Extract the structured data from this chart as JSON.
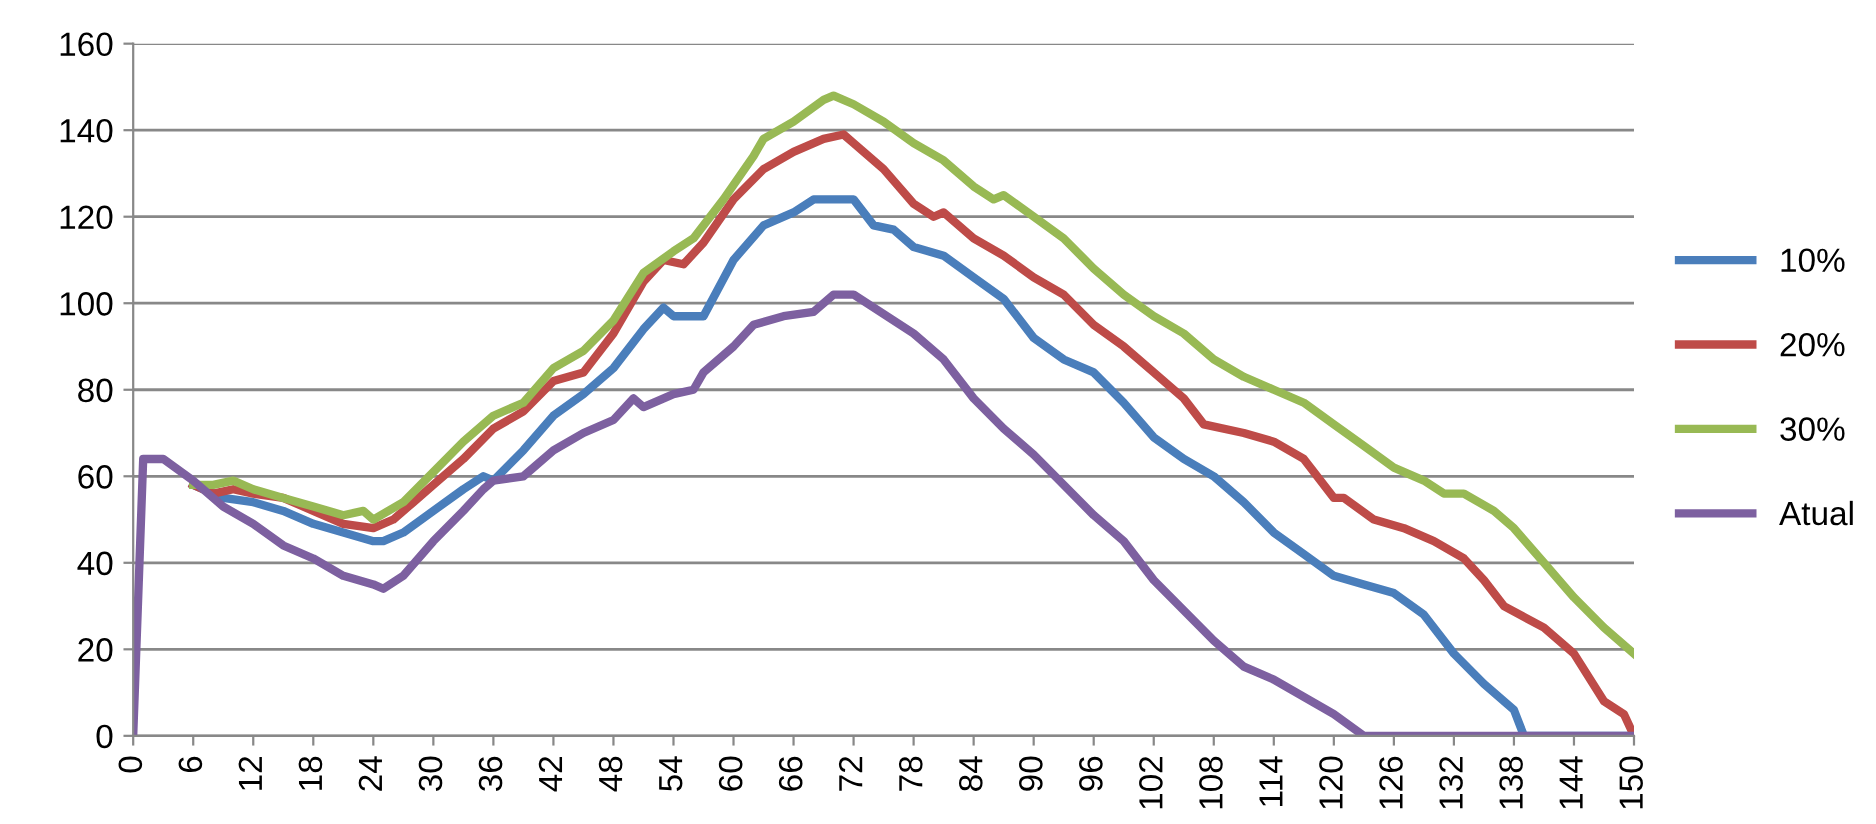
{
  "chart_data": {
    "type": "line",
    "xlim": [
      0,
      150
    ],
    "xticks": [
      0,
      6,
      12,
      18,
      24,
      30,
      36,
      42,
      48,
      54,
      60,
      66,
      72,
      78,
      84,
      90,
      96,
      102,
      108,
      114,
      120,
      126,
      132,
      138,
      144,
      150
    ],
    "ylim": [
      0,
      160
    ],
    "yticks": [
      0,
      20,
      40,
      60,
      80,
      100,
      120,
      140,
      160
    ],
    "grid": "y",
    "legend": "right",
    "marker": "none",
    "line_style": "solid",
    "series": [
      {
        "name": "10%",
        "color": "#4a7ebb",
        "x": [
          6,
          8,
          9,
          12,
          15,
          18,
          21,
          24,
          25,
          27,
          30,
          33,
          35,
          36,
          39,
          42,
          45,
          48,
          51,
          53,
          54,
          57,
          60,
          63,
          66,
          68,
          70,
          72,
          74,
          76,
          78,
          81,
          84,
          87,
          90,
          93,
          96,
          99,
          102,
          105,
          108,
          111,
          114,
          117,
          120,
          123,
          126,
          129,
          132,
          135,
          138,
          139,
          150
        ],
        "values": [
          58,
          56,
          55,
          54,
          52,
          49,
          47,
          45,
          45,
          47,
          52,
          57,
          60,
          59,
          66,
          74,
          79,
          85,
          94,
          99,
          97,
          97,
          110,
          118,
          121,
          124,
          124,
          124,
          118,
          117,
          113,
          111,
          106,
          101,
          92,
          87,
          84,
          77,
          69,
          64,
          60,
          54,
          47,
          42,
          37,
          35,
          33,
          28,
          19,
          12,
          6,
          0,
          0
        ]
      },
      {
        "name": "20%",
        "color": "#be4b48",
        "x": [
          6,
          8,
          10,
          12,
          15,
          18,
          21,
          24,
          26,
          28,
          30,
          33,
          36,
          39,
          42,
          45,
          48,
          51,
          53,
          55,
          57,
          60,
          63,
          66,
          69,
          71,
          72,
          75,
          78,
          80,
          81,
          84,
          87,
          90,
          93,
          96,
          99,
          102,
          105,
          107,
          111,
          114,
          117,
          120,
          121,
          124,
          127,
          130,
          133,
          135,
          137,
          141,
          144,
          147,
          149,
          150
        ],
        "values": [
          58,
          56,
          57,
          56,
          55,
          52,
          49,
          48,
          50,
          54,
          58,
          64,
          71,
          75,
          82,
          84,
          93,
          105,
          110,
          109,
          114,
          124,
          131,
          135,
          138,
          139,
          137,
          131,
          123,
          120,
          121,
          115,
          111,
          106,
          102,
          95,
          90,
          84,
          78,
          72,
          70,
          68,
          64,
          55,
          55,
          50,
          48,
          45,
          41,
          36,
          30,
          25,
          19,
          8,
          5,
          0
        ]
      },
      {
        "name": "30%",
        "color": "#98b954",
        "x": [
          6,
          8,
          10,
          12,
          15,
          18,
          21,
          23,
          24,
          27,
          30,
          33,
          36,
          39,
          42,
          45,
          48,
          51,
          54,
          56,
          59,
          62,
          63,
          66,
          69,
          70,
          72,
          75,
          78,
          81,
          84,
          86,
          87,
          90,
          93,
          96,
          99,
          102,
          105,
          108,
          111,
          114,
          117,
          120,
          123,
          126,
          129,
          131,
          133,
          136,
          138,
          141,
          144,
          147,
          150
        ],
        "values": [
          58,
          58,
          59,
          57,
          55,
          53,
          51,
          52,
          50,
          54,
          61,
          68,
          74,
          77,
          85,
          89,
          96,
          107,
          112,
          115,
          124,
          134,
          138,
          142,
          147,
          148,
          146,
          142,
          137,
          133,
          127,
          124,
          125,
          120,
          115,
          108,
          102,
          97,
          93,
          87,
          83,
          80,
          77,
          72,
          67,
          62,
          59,
          56,
          56,
          52,
          48,
          40,
          32,
          25,
          19
        ]
      },
      {
        "name": "Atual",
        "color": "#7d60a0",
        "x": [
          0,
          1,
          3,
          6,
          9,
          12,
          15,
          18,
          21,
          24,
          25,
          27,
          30,
          33,
          35,
          36,
          39,
          42,
          45,
          48,
          50,
          51,
          54,
          56,
          57,
          60,
          62,
          65,
          68,
          70,
          72,
          74,
          78,
          81,
          84,
          87,
          90,
          93,
          96,
          99,
          102,
          105,
          108,
          111,
          114,
          117,
          120,
          123,
          150
        ],
        "values": [
          0,
          64,
          64,
          59,
          53,
          49,
          44,
          41,
          37,
          35,
          34,
          37,
          45,
          52,
          57,
          59,
          60,
          66,
          70,
          73,
          78,
          76,
          79,
          80,
          84,
          90,
          95,
          97,
          98,
          102,
          102,
          99,
          93,
          87,
          78,
          71,
          65,
          58,
          51,
          45,
          36,
          29,
          22,
          16,
          13,
          9,
          5,
          0,
          0
        ]
      }
    ]
  }
}
